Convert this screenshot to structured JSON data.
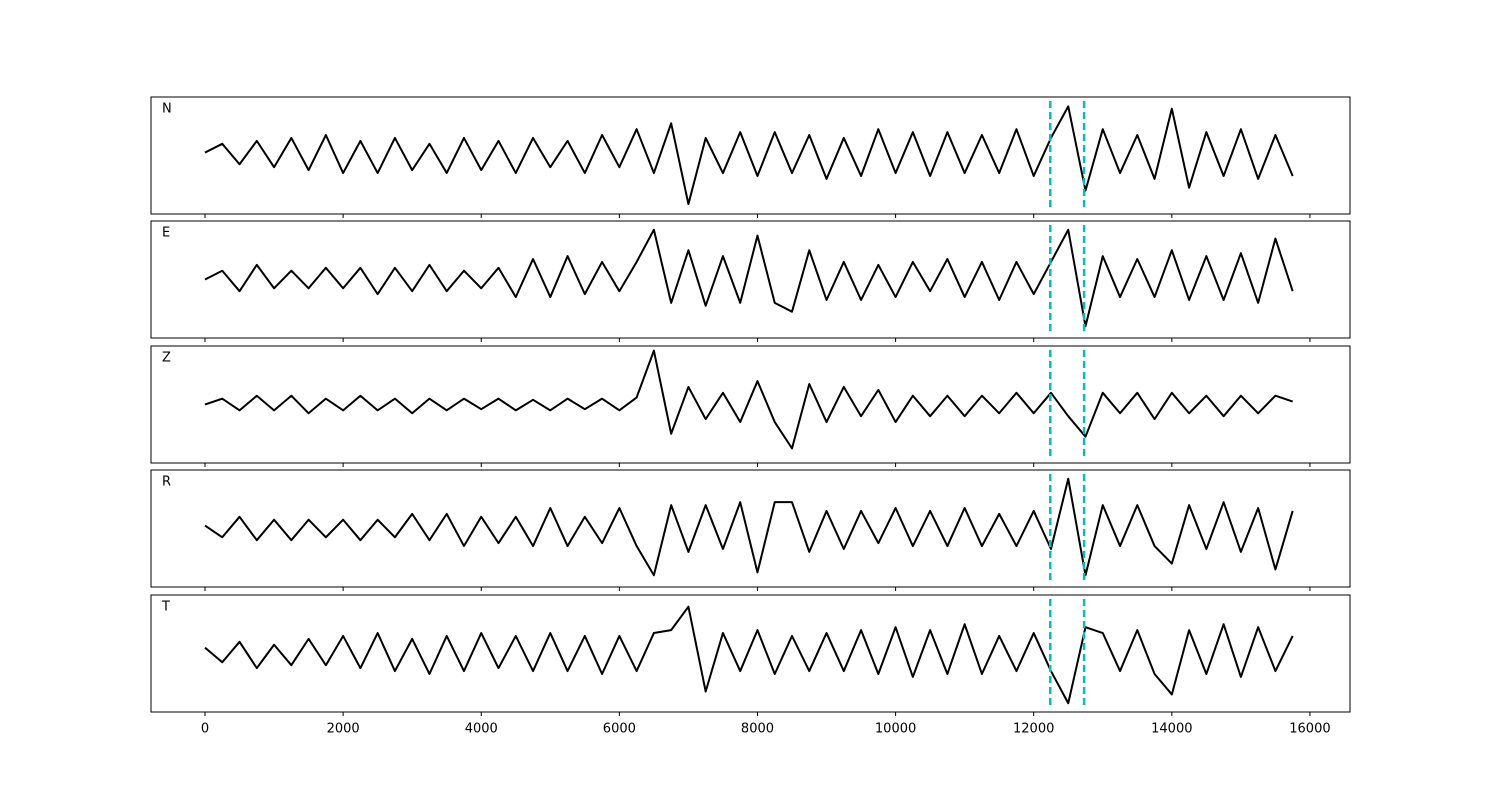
{
  "chart_data": {
    "type": "line",
    "xlim": [
      -782,
      16580
    ],
    "xticks": [
      0,
      2000,
      4000,
      6000,
      8000,
      10000,
      12000,
      14000,
      16000
    ],
    "ylim": [
      -1,
      1
    ],
    "vlines": [
      12240,
      12730
    ],
    "vline_color": "#00bfbf",
    "x": [
      0,
      250,
      500,
      750,
      1000,
      1250,
      1500,
      1750,
      2000,
      2250,
      2500,
      2750,
      3000,
      3250,
      3500,
      3750,
      4000,
      4250,
      4500,
      4750,
      5000,
      5250,
      5500,
      5750,
      6000,
      6250,
      6500,
      6750,
      7000,
      7250,
      7500,
      7750,
      8000,
      8250,
      8500,
      8750,
      9000,
      9250,
      9500,
      9750,
      10000,
      10250,
      10500,
      10750,
      11000,
      11250,
      11500,
      11750,
      12000,
      12250,
      12500,
      12750,
      13000,
      13250,
      13500,
      13750,
      14000,
      14250,
      14500,
      14750,
      15000,
      15250,
      15500,
      15750
    ],
    "series": [
      {
        "name": "N",
        "color": "#000000",
        "values": [
          0.05,
          0.2,
          -0.15,
          0.25,
          -0.2,
          0.3,
          -0.25,
          0.35,
          -0.3,
          0.25,
          -0.3,
          0.3,
          -0.25,
          0.2,
          -0.3,
          0.3,
          -0.25,
          0.25,
          -0.3,
          0.3,
          -0.2,
          0.25,
          -0.3,
          0.35,
          -0.2,
          0.45,
          -0.3,
          0.55,
          -0.83,
          0.3,
          -0.3,
          0.4,
          -0.35,
          0.4,
          -0.3,
          0.35,
          -0.4,
          0.3,
          -0.35,
          0.45,
          -0.3,
          0.4,
          -0.35,
          0.4,
          -0.3,
          0.35,
          -0.3,
          0.45,
          -0.35,
          0.3,
          0.84,
          -0.6,
          0.45,
          -0.3,
          0.35,
          -0.4,
          0.8,
          -0.55,
          0.4,
          -0.35,
          0.45,
          -0.4,
          0.35,
          -0.35
        ]
      },
      {
        "name": "E",
        "color": "#000000",
        "values": [
          0.0,
          0.15,
          -0.2,
          0.25,
          -0.15,
          0.15,
          -0.15,
          0.2,
          -0.15,
          0.2,
          -0.25,
          0.2,
          -0.2,
          0.25,
          -0.2,
          0.15,
          -0.15,
          0.2,
          -0.3,
          0.35,
          -0.3,
          0.4,
          -0.25,
          0.3,
          -0.2,
          0.3,
          0.85,
          -0.4,
          0.5,
          -0.45,
          0.4,
          -0.4,
          0.75,
          -0.4,
          -0.55,
          0.5,
          -0.35,
          0.3,
          -0.35,
          0.25,
          -0.3,
          0.3,
          -0.2,
          0.35,
          -0.3,
          0.3,
          -0.35,
          0.3,
          -0.25,
          0.3,
          0.85,
          -0.8,
          0.4,
          -0.3,
          0.35,
          -0.3,
          0.5,
          -0.35,
          0.4,
          -0.35,
          0.45,
          -0.4,
          0.7,
          -0.2
        ]
      },
      {
        "name": "Z",
        "color": "#000000",
        "values": [
          0.0,
          0.1,
          -0.1,
          0.15,
          -0.1,
          0.15,
          -0.15,
          0.1,
          -0.1,
          0.15,
          -0.1,
          0.1,
          -0.15,
          0.1,
          -0.1,
          0.1,
          -0.08,
          0.1,
          -0.1,
          0.08,
          -0.1,
          0.1,
          -0.08,
          0.1,
          -0.1,
          0.12,
          0.92,
          -0.5,
          0.3,
          -0.25,
          0.2,
          -0.3,
          0.4,
          -0.3,
          -0.75,
          0.35,
          -0.3,
          0.3,
          -0.2,
          0.25,
          -0.3,
          0.15,
          -0.2,
          0.15,
          -0.2,
          0.15,
          -0.15,
          0.2,
          -0.15,
          0.2,
          -0.2,
          -0.55,
          0.2,
          -0.15,
          0.2,
          -0.25,
          0.2,
          -0.15,
          0.15,
          -0.2,
          0.15,
          -0.15,
          0.15,
          0.05
        ]
      },
      {
        "name": "R",
        "color": "#000000",
        "values": [
          0.05,
          -0.15,
          0.2,
          -0.2,
          0.15,
          -0.2,
          0.15,
          -0.15,
          0.15,
          -0.2,
          0.15,
          -0.15,
          0.25,
          -0.2,
          0.25,
          -0.3,
          0.2,
          -0.25,
          0.2,
          -0.3,
          0.35,
          -0.3,
          0.2,
          -0.25,
          0.35,
          -0.3,
          -0.8,
          0.4,
          -0.4,
          0.4,
          -0.35,
          0.45,
          -0.75,
          0.45,
          0.45,
          -0.4,
          0.3,
          -0.35,
          0.3,
          -0.25,
          0.35,
          -0.3,
          0.3,
          -0.3,
          0.35,
          -0.3,
          0.25,
          -0.3,
          0.3,
          -0.35,
          0.85,
          -0.8,
          0.4,
          -0.3,
          0.4,
          -0.3,
          -0.6,
          0.4,
          -0.35,
          0.45,
          -0.4,
          0.35,
          -0.7,
          0.3
        ]
      },
      {
        "name": "T",
        "color": "#000000",
        "values": [
          0.1,
          -0.15,
          0.2,
          -0.25,
          0.15,
          -0.2,
          0.25,
          -0.2,
          0.3,
          -0.25,
          0.35,
          -0.3,
          0.25,
          -0.35,
          0.3,
          -0.3,
          0.35,
          -0.25,
          0.3,
          -0.3,
          0.35,
          -0.3,
          0.3,
          -0.35,
          0.3,
          -0.3,
          0.35,
          0.4,
          0.8,
          -0.65,
          0.35,
          -0.3,
          0.4,
          -0.35,
          0.3,
          -0.3,
          0.35,
          -0.3,
          0.4,
          -0.35,
          0.45,
          -0.4,
          0.4,
          -0.35,
          0.5,
          -0.35,
          0.3,
          -0.3,
          0.35,
          -0.3,
          -0.85,
          0.45,
          0.35,
          -0.3,
          0.4,
          -0.35,
          -0.7,
          0.4,
          -0.35,
          0.5,
          -0.4,
          0.45,
          -0.3,
          0.3
        ]
      }
    ]
  }
}
